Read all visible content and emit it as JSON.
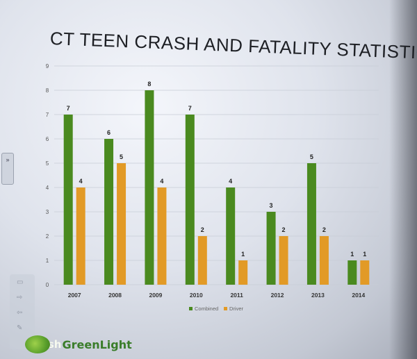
{
  "slide": {
    "title": "CT TEEN CRASH AND FATALITY STATISTICS",
    "logo_fresh": "Fresh",
    "logo_greenlight": "GreenLight",
    "side_tab_label": "»"
  },
  "chart_data": {
    "type": "bar",
    "title": "CT TEEN CRASH AND FATALITY STATISTICS",
    "categories": [
      "2007",
      "2008",
      "2009",
      "2010",
      "2011",
      "2012",
      "2013",
      "2014"
    ],
    "series": [
      {
        "name": "Combined",
        "color": "#4a8a1f",
        "values": [
          7,
          6,
          8,
          7,
          4,
          3,
          5,
          1
        ]
      },
      {
        "name": "Driver",
        "color": "#e29a26",
        "values": [
          4,
          5,
          4,
          2,
          1,
          2,
          2,
          1
        ]
      }
    ],
    "ylim": [
      0,
      9
    ],
    "yticks": [
      0,
      1,
      2,
      3,
      4,
      5,
      6,
      7,
      8,
      9
    ],
    "grid": true,
    "legend": "bottom",
    "data_labels": true
  }
}
